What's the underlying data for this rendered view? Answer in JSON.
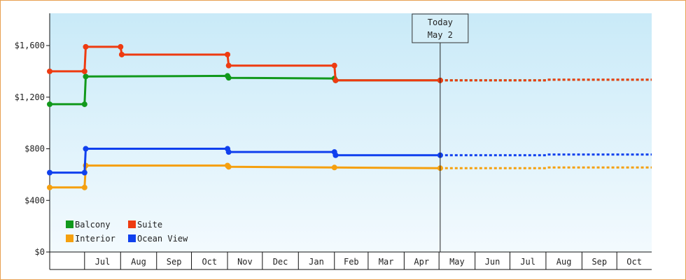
{
  "chart_data": {
    "type": "line",
    "step": true,
    "ylim": [
      0,
      1850
    ],
    "yticks": [
      0,
      400,
      800,
      1200,
      1600
    ],
    "ytick_labels": [
      "$0",
      "$400",
      "$800",
      "$1,200",
      "$1,600"
    ],
    "x_start": "2023-06-01",
    "x_end": "2024-10-31",
    "month_ticks": [
      {
        "label": "Jul",
        "date": "2023-07-01",
        "next": "2023-08-01"
      },
      {
        "label": "Aug",
        "date": "2023-08-01",
        "next": "2023-09-01"
      },
      {
        "label": "Sep",
        "date": "2023-09-01",
        "next": "2023-10-01"
      },
      {
        "label": "Oct",
        "date": "2023-10-01",
        "next": "2023-11-01"
      },
      {
        "label": "Nov",
        "date": "2023-11-01",
        "next": "2023-12-01"
      },
      {
        "label": "Dec",
        "date": "2023-12-01",
        "next": "2024-01-01"
      },
      {
        "label": "Jan",
        "date": "2024-01-01",
        "next": "2024-02-01"
      },
      {
        "label": "Feb",
        "date": "2024-02-01",
        "next": "2024-03-01"
      },
      {
        "label": "Mar",
        "date": "2024-03-01",
        "next": "2024-04-01"
      },
      {
        "label": "Apr",
        "date": "2024-04-01",
        "next": "2024-05-01"
      },
      {
        "label": "May",
        "date": "2024-05-01",
        "next": "2024-06-01"
      },
      {
        "label": "Jun",
        "date": "2024-06-01",
        "next": "2024-07-01"
      },
      {
        "label": "Jul",
        "date": "2024-07-01",
        "next": "2024-08-01"
      },
      {
        "label": "Aug",
        "date": "2024-08-01",
        "next": "2024-09-01"
      },
      {
        "label": "Sep",
        "date": "2024-09-01",
        "next": "2024-10-01"
      },
      {
        "label": "Oct",
        "date": "2024-10-01",
        "next": "2024-10-31"
      }
    ],
    "today": {
      "date": "2024-05-02",
      "line1": "Today",
      "line2": "May 2"
    },
    "series": [
      {
        "name": "Balcony",
        "color": "#11991c",
        "points": [
          [
            "2023-06-01",
            1145
          ],
          [
            "2023-07-01",
            1145
          ],
          [
            "2023-07-02",
            1360
          ],
          [
            "2023-11-01",
            1365
          ],
          [
            "2023-11-02",
            1350
          ],
          [
            "2024-02-01",
            1345
          ],
          [
            "2024-02-02",
            1330
          ],
          [
            "2024-05-02",
            1330
          ]
        ],
        "forecast": [
          [
            "2024-05-02",
            1330
          ],
          [
            "2024-08-01",
            1330
          ],
          [
            "2024-08-02",
            1335
          ],
          [
            "2024-10-31",
            1335
          ]
        ]
      },
      {
        "name": "Suite",
        "color": "#ee3b11",
        "points": [
          [
            "2023-06-01",
            1400
          ],
          [
            "2023-07-01",
            1400
          ],
          [
            "2023-07-02",
            1590
          ],
          [
            "2023-08-01",
            1590
          ],
          [
            "2023-08-02",
            1530
          ],
          [
            "2023-11-01",
            1530
          ],
          [
            "2023-11-02",
            1445
          ],
          [
            "2024-02-01",
            1445
          ],
          [
            "2024-02-02",
            1330
          ],
          [
            "2024-05-02",
            1330
          ]
        ],
        "forecast": [
          [
            "2024-05-02",
            1330
          ],
          [
            "2024-08-01",
            1330
          ],
          [
            "2024-08-02",
            1335
          ],
          [
            "2024-10-31",
            1335
          ]
        ]
      },
      {
        "name": "Interior",
        "color": "#f5a00f",
        "points": [
          [
            "2023-06-01",
            500
          ],
          [
            "2023-07-01",
            500
          ],
          [
            "2023-07-02",
            670
          ],
          [
            "2023-11-01",
            670
          ],
          [
            "2023-11-02",
            660
          ],
          [
            "2024-02-01",
            655
          ],
          [
            "2024-05-02",
            650
          ]
        ],
        "forecast": [
          [
            "2024-05-02",
            650
          ],
          [
            "2024-08-01",
            650
          ],
          [
            "2024-08-02",
            655
          ],
          [
            "2024-10-31",
            655
          ]
        ]
      },
      {
        "name": "Ocean View",
        "color": "#1040ee",
        "points": [
          [
            "2023-06-01",
            615
          ],
          [
            "2023-07-01",
            615
          ],
          [
            "2023-07-02",
            800
          ],
          [
            "2023-11-01",
            800
          ],
          [
            "2023-11-02",
            775
          ],
          [
            "2024-02-01",
            775
          ],
          [
            "2024-02-02",
            750
          ],
          [
            "2024-05-02",
            750
          ]
        ],
        "forecast": [
          [
            "2024-05-02",
            750
          ],
          [
            "2024-08-01",
            750
          ],
          [
            "2024-08-02",
            755
          ],
          [
            "2024-10-31",
            755
          ]
        ]
      }
    ],
    "legend": {
      "placement": "bottom-left",
      "rows": [
        [
          "Balcony",
          "Suite"
        ],
        [
          "Interior",
          "Ocean View"
        ]
      ]
    },
    "background": {
      "top": "#c9eaf8",
      "bottom": "#f3fafe"
    },
    "grid": false
  }
}
